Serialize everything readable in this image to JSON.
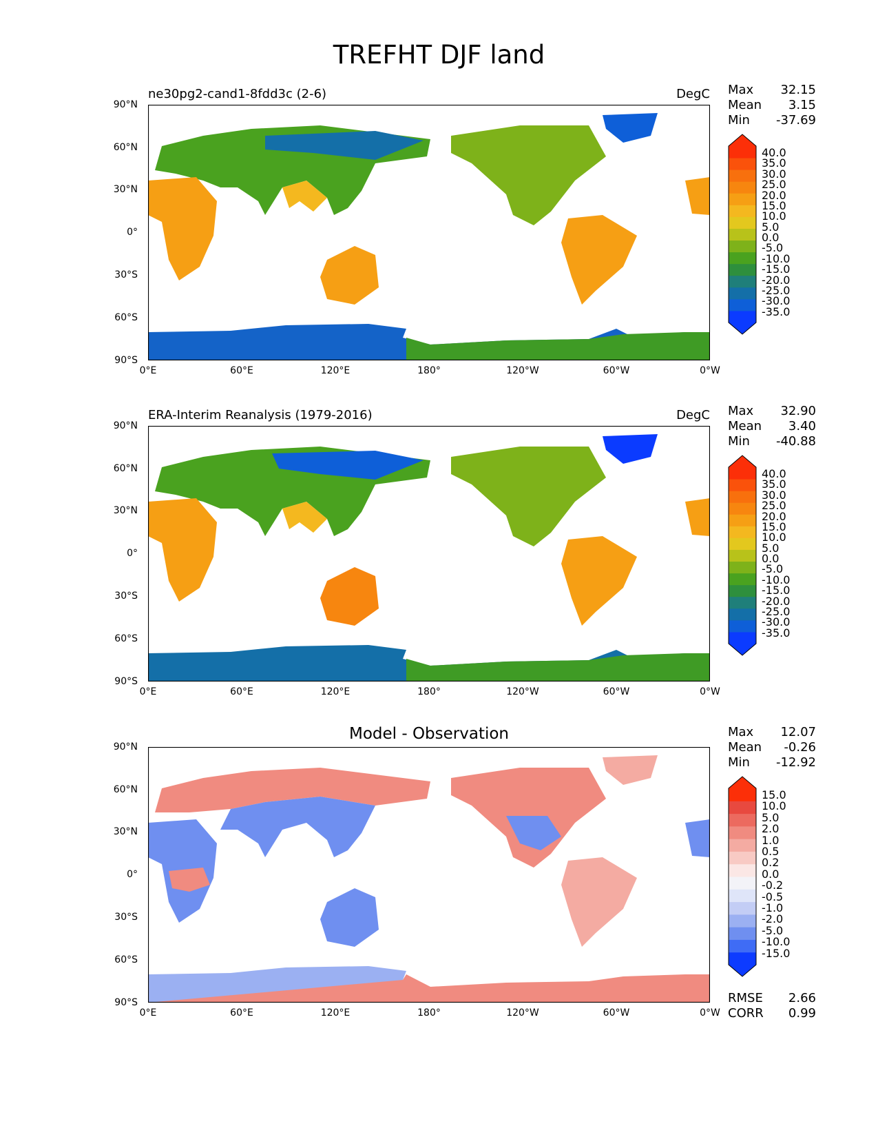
{
  "title": "TREFHT DJF land",
  "panels": [
    {
      "subtitle": "ne30pg2-cand1-8fdd3c (2-6)",
      "units": "DegC",
      "stats": {
        "max_label": "Max",
        "max": "32.15",
        "mean_label": "Mean",
        "mean": "3.15",
        "min_label": "Min",
        "min": "-37.69"
      },
      "colorbar": [
        "40.0",
        "35.0",
        "30.0",
        "25.0",
        "20.0",
        "15.0",
        "10.0",
        "5.0",
        "0.0",
        "-5.0",
        "-10.0",
        "-15.0",
        "-20.0",
        "-25.0",
        "-30.0",
        "-35.0"
      ]
    },
    {
      "subtitle": "ERA-Interim Reanalysis (1979-2016)",
      "units": "DegC",
      "stats": {
        "max_label": "Max",
        "max": "32.90",
        "mean_label": "Mean",
        "mean": "3.40",
        "min_label": "Min",
        "min": "-40.88"
      },
      "colorbar": [
        "40.0",
        "35.0",
        "30.0",
        "25.0",
        "20.0",
        "15.0",
        "10.0",
        "5.0",
        "0.0",
        "-5.0",
        "-10.0",
        "-15.0",
        "-20.0",
        "-25.0",
        "-30.0",
        "-35.0"
      ]
    },
    {
      "subtitle": "Model - Observation",
      "units": "",
      "stats": {
        "max_label": "Max",
        "max": "12.07",
        "mean_label": "Mean",
        "mean": "-0.26",
        "min_label": "Min",
        "min": "-12.92"
      },
      "colorbar": [
        "15.0",
        "10.0",
        "5.0",
        "2.0",
        "1.0",
        "0.5",
        "0.2",
        "0.0",
        "-0.2",
        "-0.5",
        "-1.0",
        "-2.0",
        "-5.0",
        "-10.0",
        "-15.0"
      ],
      "footer": {
        "rmse_label": "RMSE",
        "rmse": "2.66",
        "corr_label": "CORR",
        "corr": "0.99"
      }
    }
  ],
  "lat_labels": [
    "90°N",
    "60°N",
    "30°N",
    "0°",
    "30°S",
    "60°S",
    "90°S"
  ],
  "lon_labels": [
    "0°E",
    "60°E",
    "120°E",
    "180°",
    "120°W",
    "60°W",
    "0°W"
  ],
  "colors": {
    "temp_scale": [
      "#0b3bff",
      "#0e5fd8",
      "#146fa8",
      "#1f7f7a",
      "#2e8f3d",
      "#4aa21f",
      "#7eb21a",
      "#b8c21a",
      "#e3c81e",
      "#f4b81f",
      "#f69f14",
      "#f7860f",
      "#f8700d",
      "#fa520b",
      "#fc2f08"
    ],
    "diff_scale": [
      "#0d3bff",
      "#3f6cf5",
      "#6f8ff0",
      "#9bb0f2",
      "#c3cdf5",
      "#dfe5f9",
      "#f3f3f8",
      "#fbe7e5",
      "#f8cac4",
      "#f4aba2",
      "#f08b80",
      "#ec6a5f",
      "#e8493f",
      "#fc2f08"
    ],
    "axes": "#000000"
  }
}
